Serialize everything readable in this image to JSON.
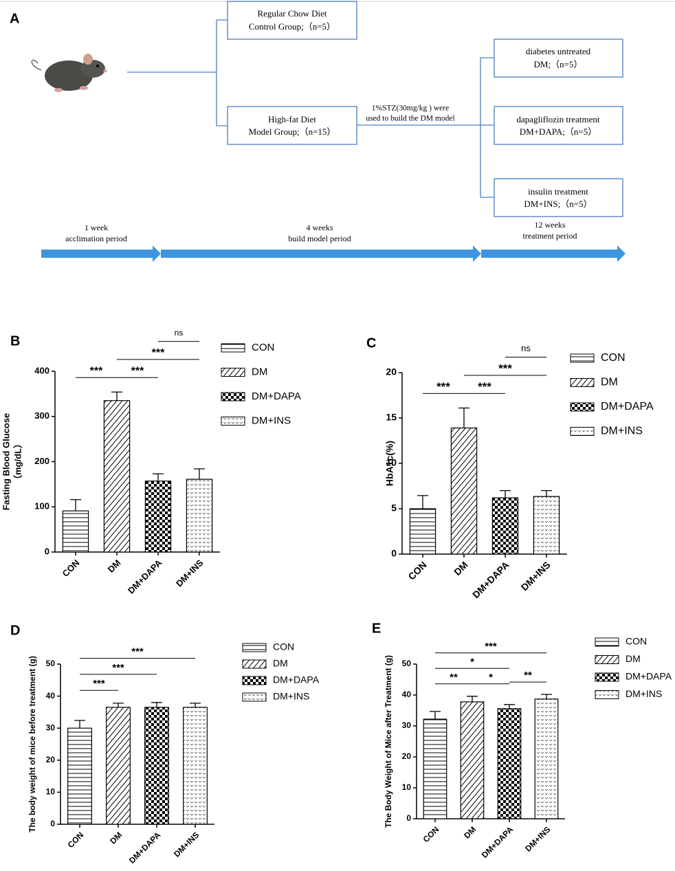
{
  "diagram": {
    "panel": "A",
    "boxes": [
      {
        "lines": [
          "Regular Chow Diet",
          "Control Group;（n=5）"
        ]
      },
      {
        "lines": [
          "High-fat Diet",
          "Model Group;（n=15）"
        ]
      },
      {
        "lines": [
          "diabetes untreated",
          "DM;（n=5）"
        ]
      },
      {
        "lines": [
          "dapagliflozin treatment",
          "DM+DAPA;（n=5）"
        ]
      },
      {
        "lines": [
          "insulin treatment",
          "DM+INS;（n=5）"
        ]
      }
    ],
    "note": [
      "1%STZ(30mg/kg ) were",
      "used to build the DM model"
    ],
    "periods": [
      {
        "lines": [
          "1 week",
          "acclimation period"
        ]
      },
      {
        "lines": [
          "4 weeks",
          "build model period"
        ]
      },
      {
        "lines": [
          "12 weeks",
          "treatment period"
        ]
      }
    ]
  },
  "chart_data": [
    {
      "type": "bar",
      "panel": "B",
      "ylabel": [
        "Fasting Blood Glucose",
        "（mg/dL）"
      ],
      "categories": [
        "CON",
        "DM",
        "DM+DAPA",
        "DM+INS"
      ],
      "patterns": [
        "horizontal",
        "diagonal",
        "checker",
        "dots"
      ],
      "values": [
        91,
        335,
        157,
        161
      ],
      "errors": [
        25,
        19,
        16,
        23
      ],
      "ylim": [
        0,
        400
      ],
      "yticks": [
        0,
        100,
        200,
        300,
        400
      ],
      "annotations": [
        {
          "pair": [
            "CON",
            "DM"
          ],
          "label": "***"
        },
        {
          "pair": [
            "DM",
            "DM+DAPA"
          ],
          "label": "***"
        },
        {
          "pair": [
            "DM",
            "DM+INS"
          ],
          "label": "***"
        },
        {
          "pair": [
            "DM+DAPA",
            "DM+INS"
          ],
          "label": "ns"
        }
      ]
    },
    {
      "type": "bar",
      "panel": "C",
      "ylabel": [
        "HbA1c(%)"
      ],
      "categories": [
        "CON",
        "DM",
        "DM+DAPA",
        "DM+INS"
      ],
      "patterns": [
        "horizontal",
        "diagonal",
        "checker",
        "dots"
      ],
      "values": [
        5.0,
        13.9,
        6.2,
        6.35
      ],
      "errors": [
        1.45,
        2.2,
        0.8,
        0.65
      ],
      "ylim": [
        0,
        20
      ],
      "yticks": [
        0,
        5,
        10,
        15,
        20
      ],
      "annotations": [
        {
          "pair": [
            "CON",
            "DM"
          ],
          "label": "***"
        },
        {
          "pair": [
            "DM",
            "DM+DAPA"
          ],
          "label": "***"
        },
        {
          "pair": [
            "DM",
            "DM+INS"
          ],
          "label": "***"
        },
        {
          "pair": [
            "DM+DAPA",
            "DM+INS"
          ],
          "label": "ns"
        }
      ]
    },
    {
      "type": "bar",
      "panel": "D",
      "ylabel": [
        "The body weight of mice before treatment (g)"
      ],
      "categories": [
        "CON",
        "DM",
        "DM+DAPA",
        "DM+INS"
      ],
      "patterns": [
        "horizontal",
        "diagonal",
        "checker",
        "dots"
      ],
      "values": [
        30.0,
        36.5,
        36.5,
        36.5
      ],
      "errors": [
        2.4,
        1.3,
        1.5,
        1.3
      ],
      "ylim": [
        0,
        50
      ],
      "yticks": [
        0,
        10,
        20,
        30,
        40,
        50
      ],
      "annotations": [
        {
          "pair": [
            "CON",
            "DM"
          ],
          "label": "***"
        },
        {
          "pair": [
            "CON",
            "DM+DAPA"
          ],
          "label": "***"
        },
        {
          "pair": [
            "CON",
            "DM+INS"
          ],
          "label": "***"
        }
      ]
    },
    {
      "type": "bar",
      "panel": "E",
      "ylabel": [
        "The Body Weight of Mice after Treatment (g)"
      ],
      "categories": [
        "CON",
        "DM",
        "DM+DAPA",
        "DM+INS"
      ],
      "patterns": [
        "horizontal",
        "diagonal",
        "checker",
        "dots"
      ],
      "values": [
        32.2,
        37.8,
        35.6,
        38.7
      ],
      "errors": [
        2.5,
        1.8,
        1.3,
        1.5
      ],
      "ylim": [
        0,
        50
      ],
      "yticks": [
        0,
        10,
        20,
        30,
        40,
        50
      ],
      "annotations": [
        {
          "pair": [
            "CON",
            "DM"
          ],
          "label": "**"
        },
        {
          "pair": [
            "DM",
            "DM+DAPA"
          ],
          "label": "*"
        },
        {
          "pair": [
            "DM+DAPA",
            "DM+INS"
          ],
          "label": "**"
        },
        {
          "pair": [
            "CON",
            "DM+DAPA"
          ],
          "label": "*"
        },
        {
          "pair": [
            "CON",
            "DM+INS"
          ],
          "label": "***"
        }
      ]
    }
  ]
}
